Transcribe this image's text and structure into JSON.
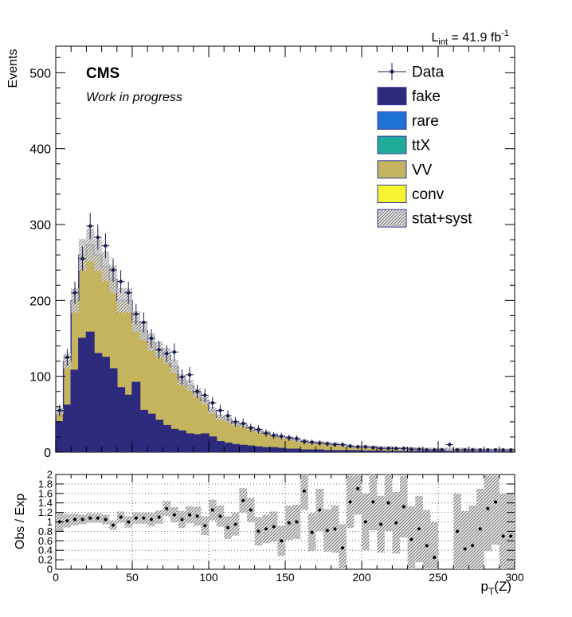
{
  "header": {
    "luminosity_label": "L",
    "luminosity_sub": "int",
    "luminosity_value": " = 41.9 fb",
    "luminosity_sup": "-1"
  },
  "labels": {
    "experiment": "CMS",
    "status": "Work in progress"
  },
  "legend": {
    "placement": "top-right",
    "entries": [
      {
        "label": "Data",
        "style": "marker",
        "color": "#1a1a4e"
      },
      {
        "label": "fake",
        "style": "fill",
        "color": "#2d2a7e"
      },
      {
        "label": "rare",
        "style": "fill",
        "color": "#1f73d4"
      },
      {
        "label": "ttX",
        "style": "fill",
        "color": "#21ab9a"
      },
      {
        "label": "VV",
        "style": "fill",
        "color": "#c4b45e"
      },
      {
        "label": "conv",
        "style": "fill",
        "color": "#f4f430"
      },
      {
        "label": "stat+syst",
        "style": "hatch",
        "color": "#9a9a9a"
      }
    ]
  },
  "colors": {
    "fake": "#2d2a7e",
    "vv": "#c4b45e",
    "outline": "#2d2a7e",
    "data": "#1a1a4e",
    "band": "#9a9a9a"
  },
  "chart_data": [
    {
      "type": "bar",
      "stacked": true,
      "title": "",
      "ylabel": "Events",
      "xlabel": "",
      "xlim": [
        0,
        300
      ],
      "ylim": [
        0,
        535
      ],
      "yticks": [
        "0",
        "100",
        "200",
        "300",
        "400",
        "500"
      ],
      "bin_width": 5,
      "x_bin_centers": [
        2.5,
        7.5,
        12.5,
        17.5,
        22.5,
        27.5,
        32.5,
        37.5,
        42.5,
        47.5,
        52.5,
        57.5,
        62.5,
        67.5,
        72.5,
        77.5,
        82.5,
        87.5,
        92.5,
        97.5,
        102.5,
        107.5,
        112.5,
        117.5,
        122.5,
        127.5,
        132.5,
        137.5,
        142.5,
        147.5,
        152.5,
        157.5,
        162.5,
        167.5,
        172.5,
        177.5,
        182.5,
        187.5,
        192.5,
        197.5,
        202.5,
        207.5,
        212.5,
        217.5,
        222.5,
        227.5,
        232.5,
        237.5,
        242.5,
        247.5,
        252.5,
        257.5,
        262.5,
        267.5,
        272.5,
        277.5,
        282.5,
        287.5,
        292.5,
        297.5
      ],
      "series": [
        {
          "name": "fake",
          "values": [
            40,
            62,
            108,
            150,
            158,
            130,
            125,
            110,
            85,
            75,
            92,
            55,
            50,
            42,
            35,
            30,
            28,
            24,
            23,
            24,
            20,
            14,
            12,
            10,
            9,
            8,
            7,
            6,
            6,
            5,
            4,
            4,
            3,
            3,
            3,
            2,
            2,
            2,
            2,
            2,
            1.5,
            1.5,
            1.5,
            1,
            1,
            1,
            1,
            1,
            1,
            1,
            1,
            1,
            0.5,
            0.5,
            0.5,
            0.5,
            0.5,
            0.5,
            0.5,
            0.5
          ]
        },
        {
          "name": "VV",
          "values": [
            15,
            58,
            92,
            110,
            115,
            130,
            120,
            118,
            115,
            125,
            80,
            105,
            95,
            93,
            92,
            83,
            67,
            64,
            55,
            44,
            35,
            32,
            31,
            28,
            27,
            24,
            21,
            20,
            17,
            15,
            15,
            12,
            12,
            10,
            10,
            10,
            9,
            7,
            6,
            5,
            5.5,
            5.5,
            4.5,
            5,
            4,
            4,
            4,
            3,
            3,
            3,
            3,
            3,
            3.5,
            3.5,
            3.5,
            2.5,
            2.5,
            2.5,
            2.5,
            2.5
          ]
        },
        {
          "name": "Data",
          "values": [
            55,
            125,
            210,
            255,
            298,
            283,
            272,
            240,
            225,
            210,
            182,
            171,
            150,
            135,
            130,
            132,
            99,
            102,
            80,
            75,
            65,
            55,
            48,
            40,
            38,
            32,
            30,
            25,
            22,
            21,
            19,
            18,
            14,
            13,
            12,
            11,
            10,
            10,
            8,
            7,
            7,
            6,
            5,
            5,
            5,
            5,
            4,
            4,
            3,
            3,
            3,
            10,
            3,
            3,
            3,
            3,
            3,
            3,
            3,
            3
          ]
        }
      ],
      "uncertainty": "stat+syst",
      "band_fraction": 0.08
    },
    {
      "type": "scatter",
      "title": "",
      "ylabel": "Obs / Exp",
      "xlabel": "p_T(Z)",
      "xlim": [
        0,
        300
      ],
      "ylim": [
        0,
        2
      ],
      "xticks": [
        "0",
        "50",
        "100",
        "150",
        "200",
        "250",
        "300"
      ],
      "yticks": [
        "0",
        "0.2",
        "0.4",
        "0.6",
        "0.8",
        "1",
        "1.2",
        "1.4",
        "1.6",
        "1.8",
        "2"
      ],
      "grid": true,
      "x": [
        2.5,
        7.5,
        12.5,
        17.5,
        22.5,
        27.5,
        32.5,
        37.5,
        42.5,
        47.5,
        52.5,
        57.5,
        62.5,
        67.5,
        72.5,
        77.5,
        82.5,
        87.5,
        92.5,
        97.5,
        102.5,
        107.5,
        112.5,
        117.5,
        122.5,
        127.5,
        132.5,
        137.5,
        142.5,
        147.5,
        152.5,
        157.5,
        162.5,
        167.5,
        172.5,
        177.5,
        182.5,
        187.5,
        192.5,
        197.5,
        202.5,
        207.5,
        212.5,
        217.5,
        222.5,
        227.5,
        232.5,
        237.5,
        242.5,
        247.5,
        262.5,
        267.5,
        272.5,
        277.5,
        282.5,
        287.5,
        292.5,
        297.5
      ],
      "ratio": [
        1.0,
        1.02,
        1.05,
        1.05,
        1.08,
        1.08,
        1.05,
        0.93,
        1.1,
        1.0,
        1.08,
        1.08,
        1.05,
        1.1,
        1.28,
        1.15,
        1.05,
        1.15,
        1.12,
        0.92,
        1.25,
        1.12,
        0.88,
        0.95,
        1.45,
        1.25,
        0.8,
        0.85,
        0.9,
        0.6,
        0.98,
        1.0,
        1.65,
        0.78,
        1.25,
        0.82,
        0.85,
        0.45,
        1.42,
        1.7,
        1.0,
        1.42,
        0.95,
        1.4,
        0.98,
        1.32,
        0.63,
        0.85,
        0.5,
        0.25,
        0.8,
        0.43,
        0.5,
        0.85,
        1.28,
        1.42,
        0.7,
        0.7
      ],
      "band_width": [
        0.2,
        0.14,
        0.12,
        0.1,
        0.1,
        0.1,
        0.1,
        0.1,
        0.12,
        0.12,
        0.12,
        0.12,
        0.14,
        0.14,
        0.16,
        0.16,
        0.18,
        0.18,
        0.2,
        0.2,
        0.22,
        0.22,
        0.24,
        0.24,
        0.26,
        0.26,
        0.3,
        0.3,
        0.32,
        0.32,
        0.36,
        0.36,
        0.4,
        0.4,
        0.45,
        0.45,
        0.5,
        0.5,
        0.55,
        0.55,
        0.6,
        0.6,
        0.6,
        0.6,
        0.65,
        0.65,
        0.7,
        0.7,
        0.75,
        0.75,
        0.8,
        0.8,
        0.85,
        0.85,
        0.9,
        0.9,
        0.9,
        0.9
      ]
    }
  ]
}
